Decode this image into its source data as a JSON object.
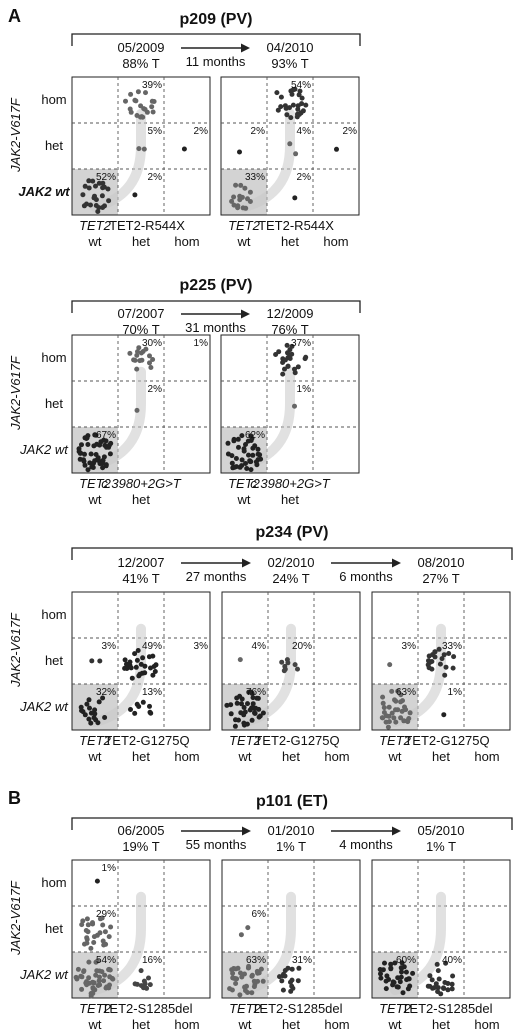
{
  "panels": [
    {
      "letter": "A",
      "title": "p209 (PV)",
      "timepoints": [
        {
          "date": "05/2009",
          "tumor": "88% T"
        },
        {
          "date": "04/2010",
          "tumor": "93% T"
        }
      ],
      "intervals": [
        "11 months"
      ],
      "row_labels": [
        "hom",
        "het",
        "JAK2 wt"
      ],
      "axis_label": "JAK2-V617F",
      "col_labels": [
        {
          "gene": "TET2",
          "state": "wt"
        },
        {
          "gene": "TET2-R544X",
          "state": "het"
        },
        {
          "gene": "",
          "state": "hom"
        }
      ],
      "grids": [
        {
          "cells": [
            {
              "r": 0,
              "c": 1,
              "pct": "39%",
              "n": 20,
              "color": "#666666"
            },
            {
              "r": 1,
              "c": 1,
              "pct": "5%",
              "n": 2,
              "color": "#666666"
            },
            {
              "r": 1,
              "c": 2,
              "pct": "2%",
              "n": 1,
              "color": "#222222"
            },
            {
              "r": 2,
              "c": 0,
              "pct": "52%",
              "n": 24,
              "color": "#333333"
            },
            {
              "r": 2,
              "c": 1,
              "pct": "2%",
              "n": 1,
              "color": "#222222"
            }
          ]
        },
        {
          "cells": [
            {
              "r": 0,
              "c": 1,
              "pct": "54%",
              "n": 26,
              "color": "#333333"
            },
            {
              "r": 1,
              "c": 0,
              "pct": "2%",
              "n": 1,
              "color": "#222222"
            },
            {
              "r": 1,
              "c": 1,
              "pct": "4%",
              "n": 2,
              "color": "#666666"
            },
            {
              "r": 1,
              "c": 2,
              "pct": "2%",
              "n": 1,
              "color": "#222222"
            },
            {
              "r": 2,
              "c": 0,
              "pct": "33%",
              "n": 16,
              "color": "#666666"
            },
            {
              "r": 2,
              "c": 1,
              "pct": "2%",
              "n": 1,
              "color": "#222222"
            }
          ]
        }
      ]
    },
    {
      "letter": "",
      "title": "p225 (PV)",
      "timepoints": [
        {
          "date": "07/2007",
          "tumor": "70% T"
        },
        {
          "date": "12/2009",
          "tumor": "76% T"
        }
      ],
      "intervals": [
        "31 months"
      ],
      "row_labels": [
        "hom",
        "het",
        "JAK2 wt"
      ],
      "axis_label": "JAK2-V617F",
      "col_labels": [
        {
          "gene": "TET2",
          "state": "wt"
        },
        {
          "gene": "c.3980+2G>T",
          "state": "het"
        },
        {
          "gene": "",
          "state": "hom"
        }
      ],
      "grids": [
        {
          "cells": [
            {
              "r": 0,
              "c": 1,
              "pct": "30%",
              "n": 16,
              "color": "#666666"
            },
            {
              "r": 0,
              "c": 2,
              "pct": "1%",
              "n": 0,
              "color": "#222222"
            },
            {
              "r": 1,
              "c": 1,
              "pct": "2%",
              "n": 1,
              "color": "#666666"
            },
            {
              "r": 2,
              "c": 0,
              "pct": "67%",
              "n": 50,
              "color": "#222222"
            }
          ]
        },
        {
          "cells": [
            {
              "r": 0,
              "c": 1,
              "pct": "37%",
              "n": 22,
              "color": "#333333"
            },
            {
              "r": 1,
              "c": 1,
              "pct": "1%",
              "n": 1,
              "color": "#666666"
            },
            {
              "r": 2,
              "c": 0,
              "pct": "62%",
              "n": 40,
              "color": "#222222"
            }
          ]
        }
      ]
    },
    {
      "letter": "",
      "title": "p234 (PV)",
      "timepoints": [
        {
          "date": "12/2007",
          "tumor": "41% T"
        },
        {
          "date": "02/2010",
          "tumor": "24% T"
        },
        {
          "date": "08/2010",
          "tumor": "27% T"
        }
      ],
      "intervals": [
        "27 months",
        "6 months"
      ],
      "row_labels": [
        "hom",
        "het",
        "JAK2 wt"
      ],
      "axis_label": "JAK2-V617F",
      "col_labels": [
        {
          "gene": "TET2",
          "state": "wt"
        },
        {
          "gene": "TET2-G1275Q",
          "state": "het"
        },
        {
          "gene": "",
          "state": "hom"
        }
      ],
      "grids": [
        {
          "cells": [
            {
              "r": 1,
              "c": 0,
              "pct": "3%",
              "n": 2,
              "color": "#333333"
            },
            {
              "r": 1,
              "c": 1,
              "pct": "49%",
              "n": 26,
              "color": "#222222"
            },
            {
              "r": 1,
              "c": 2,
              "pct": "3%",
              "n": 0,
              "color": "#222222"
            },
            {
              "r": 2,
              "c": 0,
              "pct": "32%",
              "n": 18,
              "color": "#222222"
            },
            {
              "r": 2,
              "c": 1,
              "pct": "13%",
              "n": 8,
              "color": "#222222"
            }
          ]
        },
        {
          "cells": [
            {
              "r": 1,
              "c": 0,
              "pct": "4%",
              "n": 1,
              "color": "#666666"
            },
            {
              "r": 1,
              "c": 1,
              "pct": "20%",
              "n": 8,
              "color": "#444444"
            },
            {
              "r": 2,
              "c": 0,
              "pct": "76%",
              "n": 40,
              "color": "#222222"
            }
          ]
        },
        {
          "cells": [
            {
              "r": 1,
              "c": 0,
              "pct": "3%",
              "n": 1,
              "color": "#666666"
            },
            {
              "r": 1,
              "c": 1,
              "pct": "33%",
              "n": 20,
              "color": "#333333"
            },
            {
              "r": 2,
              "c": 0,
              "pct": "63%",
              "n": 34,
              "color": "#666666"
            },
            {
              "r": 2,
              "c": 1,
              "pct": "1%",
              "n": 1,
              "color": "#222222"
            }
          ]
        }
      ]
    },
    {
      "letter": "B",
      "title": "p101 (ET)",
      "timepoints": [
        {
          "date": "06/2005",
          "tumor": "19% T"
        },
        {
          "date": "01/2010",
          "tumor": "1% T"
        },
        {
          "date": "05/2010",
          "tumor": "1% T"
        }
      ],
      "intervals": [
        "55 months",
        "4 months"
      ],
      "row_labels": [
        "hom",
        "het",
        "JAK2 wt"
      ],
      "axis_label": "JAK2-V617F",
      "col_labels": [
        {
          "gene": "TET2",
          "state": "wt"
        },
        {
          "gene": "TET2-S1285del",
          "state": "het"
        },
        {
          "gene": "",
          "state": "hom"
        }
      ],
      "grids": [
        {
          "cells": [
            {
              "r": 0,
              "c": 0,
              "pct": "1%",
              "n": 1,
              "color": "#222222"
            },
            {
              "r": 1,
              "c": 0,
              "pct": "29%",
              "n": 26,
              "color": "#666666"
            },
            {
              "r": 2,
              "c": 0,
              "pct": "54%",
              "n": 48,
              "color": "#666666"
            },
            {
              "r": 2,
              "c": 1,
              "pct": "16%",
              "n": 10,
              "color": "#444444"
            }
          ]
        },
        {
          "cells": [
            {
              "r": 1,
              "c": 0,
              "pct": "6%",
              "n": 2,
              "color": "#666666"
            },
            {
              "r": 2,
              "c": 0,
              "pct": "63%",
              "n": 36,
              "color": "#666666"
            },
            {
              "r": 2,
              "c": 1,
              "pct": "31%",
              "n": 16,
              "color": "#333333"
            }
          ]
        },
        {
          "cells": [
            {
              "r": 2,
              "c": 0,
              "pct": "60%",
              "n": 34,
              "color": "#222222"
            },
            {
              "r": 2,
              "c": 1,
              "pct": "40%",
              "n": 22,
              "color": "#333333"
            }
          ]
        }
      ]
    }
  ],
  "colors": {
    "shade": "#d3d3d3",
    "arrow_fill": "#f2f2f2",
    "arrow_stroke": "#c8c8c8",
    "grid_dash": "#555555"
  }
}
